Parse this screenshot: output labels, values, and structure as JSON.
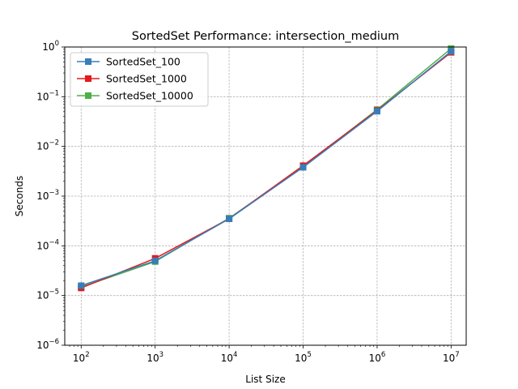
{
  "chart_data": {
    "type": "line",
    "title": "SortedSet Performance: intersection_medium",
    "xlabel": "List Size",
    "ylabel": "Seconds",
    "xscale": "log",
    "yscale": "log",
    "xlim": [
      60,
      16000000
    ],
    "ylim": [
      1e-06,
      1
    ],
    "grid": true,
    "legend_position": "top-left",
    "x": [
      100,
      1000,
      10000,
      100000,
      1000000,
      10000000
    ],
    "x_tick_labels": [
      {
        "base": "10",
        "exp": "2",
        "value": 100
      },
      {
        "base": "10",
        "exp": "3",
        "value": 1000
      },
      {
        "base": "10",
        "exp": "4",
        "value": 10000
      },
      {
        "base": "10",
        "exp": "5",
        "value": 100000
      },
      {
        "base": "10",
        "exp": "6",
        "value": 1000000
      },
      {
        "base": "10",
        "exp": "7",
        "value": 10000000
      }
    ],
    "y_tick_labels": [
      {
        "base": "10",
        "exp": "0",
        "value": 1
      },
      {
        "base": "10",
        "exp": "−1",
        "value": 0.1
      },
      {
        "base": "10",
        "exp": "−2",
        "value": 0.01
      },
      {
        "base": "10",
        "exp": "−3",
        "value": 0.001
      },
      {
        "base": "10",
        "exp": "−4",
        "value": 0.0001
      },
      {
        "base": "10",
        "exp": "−5",
        "value": 1e-05
      },
      {
        "base": "10",
        "exp": "−6",
        "value": 1e-06
      }
    ],
    "series": [
      {
        "name": "SortedSet_100",
        "color": "#377eb8",
        "marker": "square",
        "values": [
          1.58e-05,
          5e-05,
          0.00035,
          0.0038,
          0.051,
          0.82
        ]
      },
      {
        "name": "SortedSet_1000",
        "color": "#e41a1c",
        "marker": "square",
        "values": [
          1.42e-05,
          5.6e-05,
          0.00035,
          0.0041,
          0.053,
          0.78
        ]
      },
      {
        "name": "SortedSet_10000",
        "color": "#4daf4a",
        "marker": "square",
        "values": [
          1.48e-05,
          4.82e-05,
          0.00036,
          0.0039,
          0.055,
          0.93
        ]
      }
    ],
    "draw_order": [
      2,
      1,
      0
    ]
  }
}
